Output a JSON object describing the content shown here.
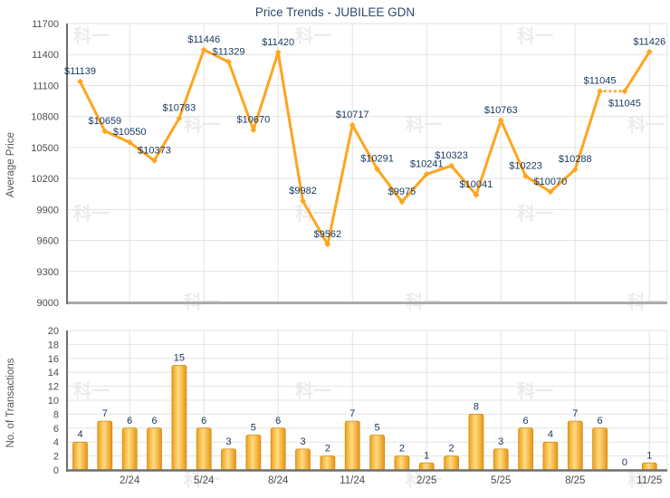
{
  "title": "Price Trends - JUBILEE GDN",
  "watermark": {
    "text": "科一"
  },
  "price_chart": {
    "ylabel": "Average Price",
    "yticks": [
      "11700",
      "11400",
      "11100",
      "10800",
      "10500",
      "10200",
      "9900",
      "9600",
      "9300",
      "9000"
    ]
  },
  "txn_chart": {
    "ylabel": "No. of Transactions",
    "yticks": [
      "20",
      "18",
      "16",
      "14",
      "12",
      "10",
      "8",
      "6",
      "4",
      "2",
      "0"
    ],
    "xticks": [
      "2/24",
      "5/24",
      "8/24",
      "11/24",
      "2/25",
      "5/25",
      "8/25",
      "11/25"
    ]
  },
  "chart_data": [
    {
      "type": "line",
      "title": "Price Trends - JUBILEE GDN",
      "ylabel": "Average Price",
      "ylim": [
        9000,
        11700
      ],
      "ytick_step": 300,
      "n_points": 24,
      "values": [
        11139,
        10659,
        10550,
        10373,
        10783,
        11446,
        11329,
        10670,
        11420,
        9982,
        9562,
        10717,
        10291,
        9975,
        10241,
        10323,
        10041,
        10763,
        10223,
        10070,
        10288,
        11045,
        11045,
        11426
      ],
      "point_labels": [
        "$11139",
        "$10659",
        "$10550",
        "$10373",
        "$10783",
        "$11446",
        "$11329",
        "$10670",
        "$11420",
        "$9982",
        "$9562",
        "$10717",
        "$10291",
        "$9975",
        "$10241",
        "$10323",
        "$10041",
        "$10763",
        "$10223",
        "$10070",
        "$10288",
        "$11045",
        "$11045",
        "$11426"
      ],
      "dotted_segment_from_index": 21,
      "label_below_indices": [
        22
      ],
      "grid": "on",
      "legend": "none"
    },
    {
      "type": "bar",
      "ylabel": "No. of Transactions",
      "ylim": [
        0,
        20
      ],
      "ytick_step": 2,
      "values": [
        4,
        7,
        6,
        6,
        15,
        6,
        3,
        5,
        6,
        3,
        2,
        7,
        5,
        2,
        1,
        2,
        8,
        3,
        6,
        4,
        7,
        6,
        0,
        1
      ],
      "bar_labels": [
        "4",
        "7",
        "6",
        "6",
        "15",
        "6",
        "3",
        "5",
        "6",
        "3",
        "2",
        "7",
        "5",
        "2",
        "1",
        "2",
        "8",
        "3",
        "6",
        "4",
        "7",
        "6",
        "0",
        "1"
      ],
      "xtick_indices": [
        2,
        5,
        8,
        11,
        14,
        17,
        20,
        23
      ],
      "xtick_labels": [
        "2/24",
        "5/24",
        "8/24",
        "11/24",
        "2/25",
        "5/25",
        "8/25",
        "11/25"
      ],
      "grid": "on",
      "legend": "none"
    }
  ],
  "colors": {
    "line": "#FFA51E",
    "bar_edge": "#EDA019",
    "bar_light": "#FFDC82",
    "bar_edge2": "#E89412",
    "bar_border": "#D3880E",
    "point_label": "#17375E",
    "title": "#2F4A6B",
    "tick_label": "#4D4D4D",
    "axis_title": "#555555",
    "grid": "#E3E3E3",
    "axis_dark": "#6E6E6E",
    "axis_light": "#ABABAB",
    "watermark": "#ECECEC",
    "background": "#FFFFFF"
  }
}
